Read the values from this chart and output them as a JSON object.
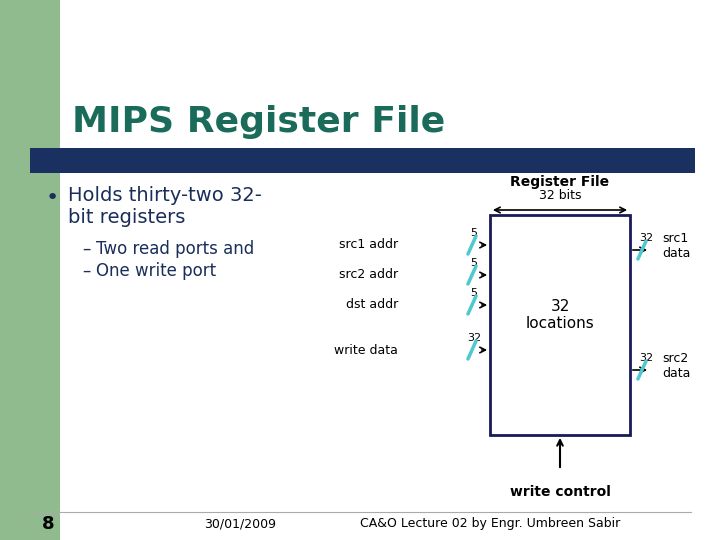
{
  "title": "MIPS Register File",
  "title_color": "#1a6b5a",
  "bg_color": "#ffffff",
  "green_bg": "#8fbb8f",
  "dark_bar_color": "#1a3060",
  "bullet_text_line1": "Holds thirty-two 32-",
  "bullet_text_line2": "bit registers",
  "dash_item1": "Two read ports and",
  "dash_item2": "One write port",
  "box_edgecolor": "#1a1a5a",
  "arrow_color": "#4fc8d0",
  "text_dark": "#1a2e5a",
  "reg_file_label": "Register File",
  "bits_label": "32 bits",
  "locations_label": "32\nlocations",
  "src1_addr": "src1 addr",
  "src2_addr": "src2 addr",
  "dst_addr": "dst addr",
  "write_data": "write data",
  "src1_data": "src1\ndata",
  "src2_data": "src2\ndata",
  "write_control": "write control",
  "footer_left": "30/01/2009",
  "footer_right": "CA&O Lecture 02 by Engr. Umbreen Sabir",
  "page_num": "8"
}
